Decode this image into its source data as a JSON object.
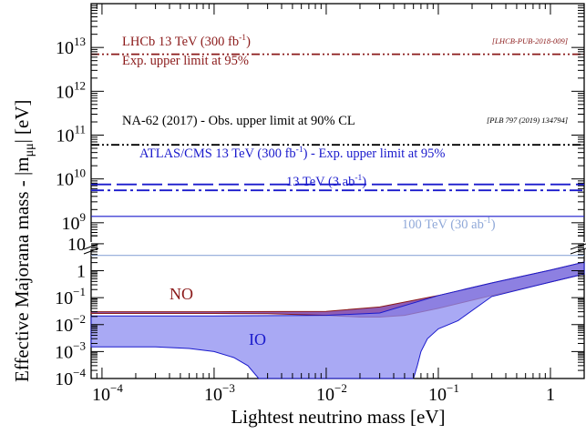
{
  "chart_data": {
    "type": "line",
    "title": "",
    "xlabel": "Lightest neutrino mass [eV]",
    "ylabel_parts": {
      "prefix": "Effective Majorana mass - ",
      "symbol": "|m",
      "subscript": "μμ",
      "suffix": "| [eV]"
    },
    "xscale": "log",
    "xlim": [
      8e-05,
      2
    ],
    "x_tick_labels": [
      {
        "value": 0.0001,
        "base": "10",
        "exp": "−4"
      },
      {
        "value": 0.001,
        "base": "10",
        "exp": "−3"
      },
      {
        "value": 0.01,
        "base": "10",
        "exp": "−2"
      },
      {
        "value": 0.1,
        "base": "10",
        "exp": "−1"
      },
      {
        "value": 1,
        "base": "1",
        "exp": ""
      }
    ],
    "upper_panel": {
      "yscale": "log",
      "ylim": [
        300000000,
        100000000000000
      ],
      "y_tick_labels": [
        {
          "value": 1000000000,
          "base": "10",
          "exp": "9"
        },
        {
          "value": 10000000000,
          "base": "10",
          "exp": "10"
        },
        {
          "value": 100000000000,
          "base": "10",
          "exp": "11"
        },
        {
          "value": 1000000000000,
          "base": "10",
          "exp": "12"
        },
        {
          "value": 10000000000000,
          "base": "10",
          "exp": "13"
        }
      ],
      "limit_lines": [
        {
          "name": "LHCb 13 TeV (300 fb⁻¹) Exp. upper limit at 95%",
          "value": 7000000000000,
          "color": "#8b1a1a",
          "style": "dash-dot-dot"
        },
        {
          "name": "NA-62 (2017) - Obs. upper limit at 90% CL",
          "value": 60000000000,
          "color": "#000000",
          "style": "dash-dot-dot"
        },
        {
          "name": "ATLAS/CMS 13 TeV (300 fb⁻¹) - Exp. upper limit at 95%",
          "value": 7500000000,
          "color": "#1a1acc",
          "style": "long-dash"
        },
        {
          "name": "ATLAS/CMS 13 TeV (300 fb⁻¹) - Exp. upper limit at 95% (second line)",
          "value": 5500000000,
          "color": "#1a1acc",
          "style": "dash-dot"
        },
        {
          "name": "13 TeV (3 ab⁻¹)",
          "value": 1400000000,
          "color": "#1a1acc",
          "style": "solid"
        },
        {
          "name": "100 TeV (30 ab⁻¹)",
          "value": 180000000,
          "color": "#8fa8d8",
          "style": "solid"
        }
      ]
    },
    "lower_panel": {
      "yscale": "log",
      "ylim": [
        0.0001,
        20
      ],
      "y_tick_labels": [
        {
          "value": 0.0001,
          "base": "10",
          "exp": "−4"
        },
        {
          "value": 0.001,
          "base": "10",
          "exp": "−3"
        },
        {
          "value": 0.01,
          "base": "10",
          "exp": "−2"
        },
        {
          "value": 0.1,
          "base": "10",
          "exp": "−1"
        },
        {
          "value": 1,
          "base": "1",
          "exp": ""
        },
        {
          "value": 10,
          "base": "10",
          "exp": ""
        }
      ],
      "bands": [
        {
          "name": "NO",
          "color": "#8b1a1a",
          "fill": "#7a3fa8",
          "upper": [
            [
              8e-05,
              0.03
            ],
            [
              0.001,
              0.03
            ],
            [
              0.01,
              0.031
            ],
            [
              0.03,
              0.045
            ],
            [
              0.1,
              0.12
            ],
            [
              0.3,
              0.35
            ],
            [
              1,
              1.05
            ],
            [
              2,
              2.1
            ]
          ],
          "lower": [
            [
              8e-05,
              0.026
            ],
            [
              0.001,
              0.026
            ],
            [
              0.003,
              0.0255
            ],
            [
              0.01,
              0.022
            ],
            [
              0.02,
              0.019
            ],
            [
              0.03,
              0.019
            ],
            [
              0.05,
              0.022
            ],
            [
              0.1,
              0.04
            ],
            [
              0.3,
              0.12
            ],
            [
              1,
              0.38
            ],
            [
              2,
              0.76
            ]
          ]
        },
        {
          "name": "IO",
          "color": "#1a1acc",
          "fill": "#8c8cf0",
          "upper": [
            [
              8e-05,
              0.021
            ],
            [
              0.001,
              0.021
            ],
            [
              0.01,
              0.022
            ],
            [
              0.03,
              0.027
            ],
            [
              0.1,
              0.12
            ],
            [
              0.3,
              0.35
            ],
            [
              1,
              1.05
            ],
            [
              2,
              2.1
            ]
          ],
          "lower": [
            [
              8e-05,
              0.0015
            ],
            [
              0.0003,
              0.0015
            ],
            [
              0.0006,
              0.0013
            ],
            [
              0.001,
              0.001
            ],
            [
              0.0015,
              0.0006
            ],
            [
              0.002,
              0.0003
            ],
            [
              0.0025,
              0.0001
            ],
            [
              0.06,
              0.0001
            ],
            [
              0.065,
              0.0003
            ],
            [
              0.07,
              0.001
            ],
            [
              0.08,
              0.003
            ],
            [
              0.1,
              0.007
            ],
            [
              0.15,
              0.014
            ],
            [
              0.3,
              0.11
            ],
            [
              1,
              0.38
            ],
            [
              2,
              0.76
            ]
          ]
        }
      ]
    },
    "annotations": {
      "lhcb_line1": "LHCb 13 TeV (300 fb",
      "lhcb_line1_sup": "-1",
      "lhcb_line1_end": ")",
      "lhcb_line2": "Exp. upper limit at 95%",
      "lhcb_ref": "[LHCB-PUB-2018-009]",
      "na62": "NA-62 (2017) - Obs. upper limit at 90% CL",
      "na62_ref": "[PLB 797 (2019) 134794]",
      "atlas_part1": "ATLAS/CMS 13 TeV (300 fb",
      "atlas_sup": "-1",
      "atlas_part2": ") - Exp. upper limit at 95%",
      "hl_part1": "13 TeV (3 ab",
      "hl_sup": "-1",
      "hl_part2": ")",
      "fcc_part1": "100 TeV (30 ab",
      "fcc_sup": "-1",
      "fcc_part2": ")",
      "no_label": "NO",
      "io_label": "IO"
    }
  }
}
